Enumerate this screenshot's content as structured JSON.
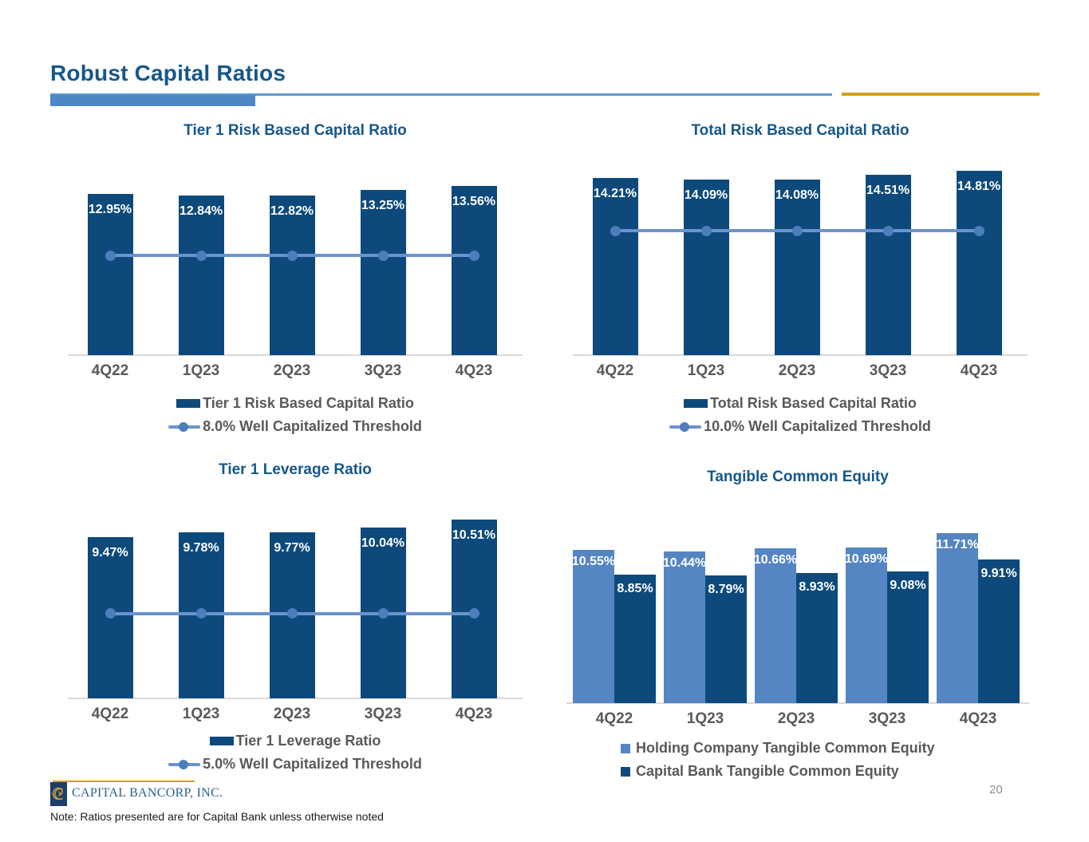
{
  "page": {
    "title": "Robust Capital Ratios",
    "note": "Note: Ratios presented are for Capital Bank unless otherwise noted",
    "page_number": "20",
    "logo_text": "CAPITAL BANCORP, INC."
  },
  "colors": {
    "navy_bar": "#0d4a7b",
    "light_blue_bar": "#5586c3",
    "threshold_line": "#6b93cd",
    "threshold_dot": "#4d7dbd",
    "accent_bar": "#4e87c6",
    "thin_rule": "#5b9bd5",
    "gold_rule": "#d4a017",
    "title_blue": "#15578a",
    "axis_gray": "#595959",
    "baseline_gray": "#d9d9d9"
  },
  "chart_data": [
    {
      "type": "bar",
      "title": "Tier 1 Risk Based Capital Ratio",
      "categories": [
        "4Q22",
        "1Q23",
        "2Q23",
        "3Q23",
        "4Q23"
      ],
      "series": [
        {
          "name": "Tier 1 Risk Based Capital Ratio",
          "values": [
            12.95,
            12.84,
            12.82,
            13.25,
            13.56
          ],
          "labels": [
            "12.95%",
            "12.84%",
            "12.82%",
            "13.25%",
            "13.56%"
          ]
        }
      ],
      "threshold": {
        "value": 8.0,
        "label": "8.0% Well Capitalized Threshold"
      },
      "ylim": [
        0,
        14.4
      ],
      "grid": false,
      "legend_position": "bottom"
    },
    {
      "type": "bar",
      "title": "Total Risk Based Capital Ratio",
      "categories": [
        "4Q22",
        "1Q23",
        "2Q23",
        "3Q23",
        "4Q23"
      ],
      "series": [
        {
          "name": "Total Risk Based Capital Ratio",
          "values": [
            14.21,
            14.09,
            14.08,
            14.51,
            14.81
          ],
          "labels": [
            "14.21%",
            "14.09%",
            "14.08%",
            "14.51%",
            "14.81%"
          ]
        }
      ],
      "threshold": {
        "value": 10.0,
        "label": "10.0% Well Capitalized Threshold"
      },
      "ylim": [
        0,
        15.1
      ],
      "grid": false,
      "legend_position": "bottom"
    },
    {
      "type": "bar",
      "title": "Tier 1 Leverage Ratio",
      "categories": [
        "4Q22",
        "1Q23",
        "2Q23",
        "3Q23",
        "4Q23"
      ],
      "series": [
        {
          "name": "Tier 1 Leverage Ratio",
          "values": [
            9.47,
            9.78,
            9.77,
            10.04,
            10.51
          ],
          "labels": [
            "9.47%",
            "9.78%",
            "9.77%",
            "10.04%",
            "10.51%"
          ]
        }
      ],
      "threshold": {
        "value": 5.0,
        "label": "5.0% Well Capitalized Threshold"
      },
      "ylim": [
        0,
        11.0
      ],
      "grid": false,
      "legend_position": "bottom"
    },
    {
      "type": "bar",
      "title": "Tangible Common Equity",
      "categories": [
        "4Q22",
        "1Q23",
        "2Q23",
        "3Q23",
        "4Q23"
      ],
      "series": [
        {
          "name": "Holding Company Tangible Common Equity",
          "values": [
            10.55,
            10.44,
            10.66,
            10.69,
            11.71
          ],
          "labels": [
            "10.55%",
            "10.44%",
            "10.66%",
            "10.69%",
            "11.71%"
          ]
        },
        {
          "name": "Capital Bank Tangible Common Equity",
          "values": [
            8.85,
            8.79,
            8.93,
            9.08,
            9.91
          ],
          "labels": [
            "8.85%",
            "8.79%",
            "8.93%",
            "9.08%",
            "9.91%"
          ]
        }
      ],
      "ylim": [
        0,
        13.0
      ],
      "grid": false,
      "legend_position": "bottom"
    }
  ]
}
